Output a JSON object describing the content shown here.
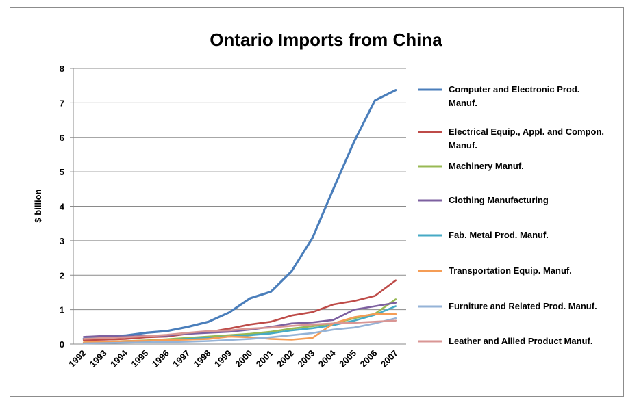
{
  "chart_data": {
    "type": "line",
    "title": "Ontario Imports from China",
    "ylabel": "$ billion",
    "xlabel": "",
    "ylim": [
      0,
      8
    ],
    "yticks": [
      0,
      1,
      2,
      3,
      4,
      5,
      6,
      7,
      8
    ],
    "grid": true,
    "legend_position": "right",
    "x": [
      "1992",
      "1993",
      "1994",
      "1995",
      "1996",
      "1997",
      "1998",
      "1999",
      "2000",
      "2001",
      "2002",
      "2003",
      "2004",
      "2005",
      "2006",
      "2007"
    ],
    "series": [
      {
        "name": "Computer and Electronic Prod. Manuf.",
        "legend_lines": [
          "Computer and Electronic Prod.",
          "Manuf."
        ],
        "color": "#4a7ebb",
        "values": [
          0.15,
          0.2,
          0.25,
          0.33,
          0.38,
          0.5,
          0.65,
          0.92,
          1.33,
          1.52,
          2.12,
          3.08,
          4.5,
          5.88,
          7.07,
          7.37
        ]
      },
      {
        "name": "Electrical Equip., Appl. and Compon. Manuf.",
        "legend_lines": [
          "Electrical Equip., Appl. and Compon.",
          "Manuf."
        ],
        "color": "#be4b48",
        "values": [
          0.12,
          0.13,
          0.15,
          0.2,
          0.22,
          0.3,
          0.35,
          0.45,
          0.57,
          0.65,
          0.83,
          0.93,
          1.15,
          1.25,
          1.4,
          1.85
        ]
      },
      {
        "name": "Machinery Manuf.",
        "legend_lines": [
          "Machinery Manuf."
        ],
        "color": "#98b954",
        "values": [
          0.05,
          0.07,
          0.09,
          0.11,
          0.14,
          0.18,
          0.22,
          0.26,
          0.3,
          0.36,
          0.45,
          0.52,
          0.6,
          0.75,
          0.88,
          1.3
        ]
      },
      {
        "name": "Clothing Manufacturing",
        "legend_lines": [
          "Clothing Manufacturing"
        ],
        "color": "#7d60a0",
        "values": [
          0.21,
          0.24,
          0.22,
          0.24,
          0.25,
          0.3,
          0.33,
          0.36,
          0.42,
          0.5,
          0.6,
          0.63,
          0.7,
          1.0,
          1.1,
          1.2
        ]
      },
      {
        "name": "Fab. Metal Prod. Manuf.",
        "legend_lines": [
          "Fab. Metal Prod. Manuf."
        ],
        "color": "#46aac5",
        "values": [
          0.04,
          0.05,
          0.07,
          0.09,
          0.12,
          0.15,
          0.18,
          0.22,
          0.26,
          0.31,
          0.4,
          0.46,
          0.55,
          0.68,
          0.85,
          1.1
        ]
      },
      {
        "name": "Transportation Equip. Manuf.",
        "legend_lines": [
          "Transportation Equip. Manuf."
        ],
        "color": "#f59d56",
        "values": [
          0.05,
          0.07,
          0.09,
          0.1,
          0.12,
          0.13,
          0.15,
          0.22,
          0.2,
          0.15,
          0.13,
          0.18,
          0.6,
          0.78,
          0.87,
          0.87
        ]
      },
      {
        "name": "Furniture and Related Prod. Manuf.",
        "legend_lines": [
          "Furniture and Related Prod. Manuf."
        ],
        "color": "#95b3d7",
        "values": [
          0.02,
          0.03,
          0.04,
          0.05,
          0.06,
          0.07,
          0.09,
          0.12,
          0.15,
          0.2,
          0.26,
          0.32,
          0.42,
          0.48,
          0.6,
          0.75
        ]
      },
      {
        "name": "Leather and Allied Product Manuf.",
        "legend_lines": [
          "Leather and Allied Product Manuf."
        ],
        "color": "#d99694",
        "values": [
          0.15,
          0.18,
          0.2,
          0.23,
          0.27,
          0.33,
          0.38,
          0.4,
          0.45,
          0.48,
          0.53,
          0.57,
          0.6,
          0.62,
          0.65,
          0.68
        ]
      }
    ]
  }
}
